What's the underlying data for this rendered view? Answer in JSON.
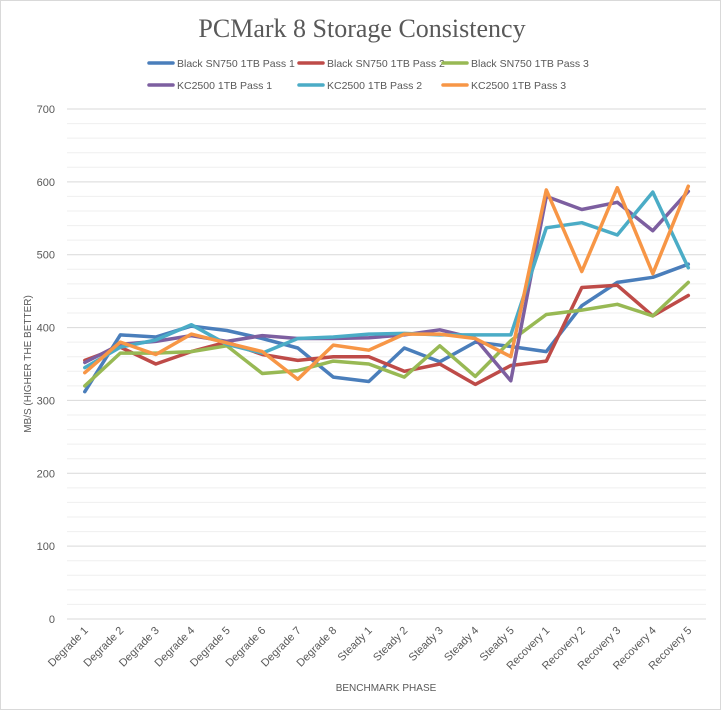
{
  "chart_data": {
    "type": "line",
    "title": "PCMark 8 Storage Consistency",
    "xlabel": "BENCHMARK PHASE",
    "ylabel": "MB/S (HIGHER THE BETTER)",
    "ylim": [
      0,
      700
    ],
    "yticks": [
      0,
      100,
      200,
      300,
      400,
      500,
      600,
      700
    ],
    "grid": true,
    "legend_position": "top",
    "categories": [
      "Degrade 1",
      "Degrade 2",
      "Degrade 3",
      "Degrade 4",
      "Degrade 5",
      "Degrade 6",
      "Degrade 7",
      "Degrade 8",
      "Steady 1",
      "Steady 2",
      "Steady 3",
      "Steady 4",
      "Steady 5",
      "Recovery 1",
      "Recovery 2",
      "Recovery 3",
      "Recovery 4",
      "Recovery 5"
    ],
    "series": [
      {
        "name": "Black SN750 1TB Pass 1",
        "color": "#4a7ebb",
        "values": [
          312,
          390,
          387,
          402,
          396,
          385,
          372,
          332,
          326,
          372,
          353,
          380,
          374,
          367,
          430,
          462,
          469,
          487
        ]
      },
      {
        "name": "Black SN750 1TB Pass 2",
        "color": "#be4b48",
        "values": [
          355,
          373,
          350,
          367,
          380,
          363,
          355,
          360,
          360,
          340,
          350,
          322,
          348,
          354,
          455,
          458,
          416,
          444
        ]
      },
      {
        "name": "Black SN750 1TB Pass 3",
        "color": "#98b954",
        "values": [
          320,
          365,
          365,
          367,
          375,
          337,
          341,
          354,
          350,
          332,
          375,
          333,
          382,
          418,
          424,
          432,
          416,
          462
        ]
      },
      {
        "name": "KC2500 1TB Pass 1",
        "color": "#7d5fa0",
        "values": [
          352,
          377,
          381,
          389,
          381,
          389,
          385,
          385,
          386,
          390,
          397,
          385,
          327,
          580,
          562,
          572,
          533,
          587
        ]
      },
      {
        "name": "KC2500 1TB Pass 2",
        "color": "#4bacc6",
        "values": [
          345,
          373,
          383,
          404,
          377,
          365,
          385,
          387,
          391,
          392,
          390,
          390,
          390,
          537,
          544,
          527,
          586,
          482
        ]
      },
      {
        "name": "KC2500 1TB Pass 3",
        "color": "#f79646",
        "values": [
          338,
          380,
          363,
          391,
          379,
          367,
          329,
          376,
          369,
          391,
          391,
          385,
          360,
          589,
          477,
          592,
          474,
          594
        ]
      }
    ]
  }
}
